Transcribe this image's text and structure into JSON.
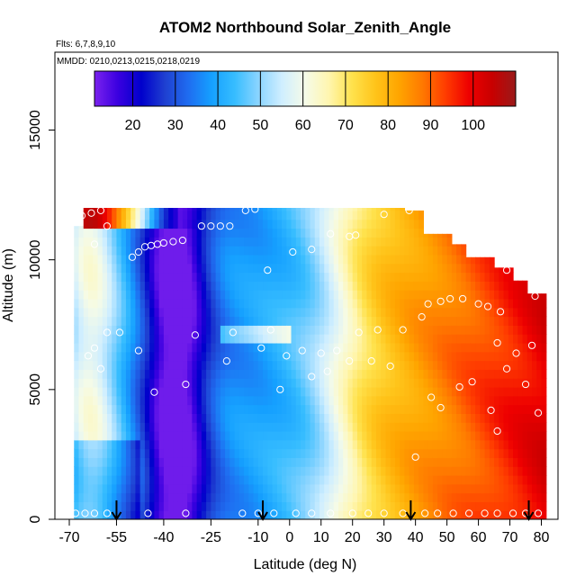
{
  "chart_data": {
    "type": "heatmap",
    "title": "ATOM2 Northbound Solar_Zenith_Angle",
    "flights_text": "Flts: 6,7,8,9,10",
    "dates_text": "MMDD: 0210,0213,0215,0218,0219",
    "xlabel": "Latitude (deg N)",
    "ylabel": "Altitude (m)",
    "xlim": [
      -70,
      85
    ],
    "ylim": [
      0,
      18000
    ],
    "x_ticks": [
      -70,
      -55,
      -40,
      -25,
      -10,
      0,
      10,
      20,
      30,
      40,
      50,
      60,
      70,
      80
    ],
    "x_tick_labels": [
      "-70",
      "-55",
      "-40",
      "-25",
      "-10",
      "0",
      "10",
      "20",
      "30",
      "40",
      "50",
      "60",
      "70",
      "80"
    ],
    "y_ticks": [
      0,
      5000,
      10000,
      15000
    ],
    "y_tick_labels": [
      "0",
      "5000",
      "10000",
      "15000"
    ],
    "colorbar": {
      "range": [
        11,
        110
      ],
      "ticks": [
        20,
        30,
        40,
        50,
        60,
        70,
        80,
        90,
        100
      ],
      "tick_labels": [
        "20",
        "30",
        "40",
        "50",
        "60",
        "70",
        "80",
        "90",
        "100"
      ],
      "colors": [
        "#7b22ee",
        "#3a00e0",
        "#0000cc",
        "#1f3fd0",
        "#1f6cf0",
        "#15a0ff",
        "#37bdff",
        "#8ad4ff",
        "#cfeeff",
        "#f5fbe8",
        "#fff6b0",
        "#ffe24d",
        "#ffc41a",
        "#ffa500",
        "#ff7a00",
        "#ff3c00",
        "#ee0000",
        "#c80000",
        "#9a1a1a"
      ]
    },
    "profile_latitudes": [
      -55,
      -8.5,
      38.5,
      76
    ],
    "surface_points_lat": [
      -68,
      -65,
      -62,
      -58,
      -45,
      -33,
      -15,
      -10,
      -5,
      2,
      7,
      13,
      20,
      25,
      30,
      36,
      43,
      47,
      52,
      57,
      62,
      66,
      71,
      75,
      79
    ],
    "aircraft_samples": [
      {
        "lat": -66,
        "alt": 11700
      },
      {
        "lat": -63,
        "alt": 11800
      },
      {
        "lat": -60,
        "alt": 11900
      },
      {
        "lat": -58,
        "alt": 11300
      },
      {
        "lat": -62,
        "alt": 10600
      },
      {
        "lat": -50,
        "alt": 10100
      },
      {
        "lat": -48,
        "alt": 10300
      },
      {
        "lat": -46,
        "alt": 10500
      },
      {
        "lat": -44,
        "alt": 10550
      },
      {
        "lat": -42,
        "alt": 10600
      },
      {
        "lat": -40,
        "alt": 10650
      },
      {
        "lat": -37,
        "alt": 10700
      },
      {
        "lat": -34,
        "alt": 10750
      },
      {
        "lat": -28,
        "alt": 11300
      },
      {
        "lat": -25,
        "alt": 11300
      },
      {
        "lat": -22,
        "alt": 11300
      },
      {
        "lat": -19,
        "alt": 11300
      },
      {
        "lat": -14,
        "alt": 11900
      },
      {
        "lat": -11,
        "alt": 11950
      },
      {
        "lat": -7,
        "alt": 9600
      },
      {
        "lat": 1,
        "alt": 10300
      },
      {
        "lat": 7,
        "alt": 10400
      },
      {
        "lat": 13,
        "alt": 11000
      },
      {
        "lat": 19,
        "alt": 10900
      },
      {
        "lat": 21,
        "alt": 10950
      },
      {
        "lat": 30,
        "alt": 11750
      },
      {
        "lat": 38,
        "alt": 11900
      },
      {
        "lat": -64,
        "alt": 6300
      },
      {
        "lat": -62,
        "alt": 6600
      },
      {
        "lat": -60,
        "alt": 5800
      },
      {
        "lat": -58,
        "alt": 7200
      },
      {
        "lat": -54,
        "alt": 7200
      },
      {
        "lat": -48,
        "alt": 6500
      },
      {
        "lat": -43,
        "alt": 4900
      },
      {
        "lat": -33,
        "alt": 5200
      },
      {
        "lat": -30,
        "alt": 7100
      },
      {
        "lat": -20,
        "alt": 6100
      },
      {
        "lat": -18,
        "alt": 7200
      },
      {
        "lat": -9,
        "alt": 6600
      },
      {
        "lat": -6,
        "alt": 7300
      },
      {
        "lat": -3,
        "alt": 5000
      },
      {
        "lat": -1,
        "alt": 6300
      },
      {
        "lat": 4,
        "alt": 6500
      },
      {
        "lat": 7,
        "alt": 5500
      },
      {
        "lat": 10,
        "alt": 6400
      },
      {
        "lat": 12,
        "alt": 5700
      },
      {
        "lat": 15,
        "alt": 6500
      },
      {
        "lat": 19,
        "alt": 6100
      },
      {
        "lat": 22,
        "alt": 7200
      },
      {
        "lat": 26,
        "alt": 6100
      },
      {
        "lat": 28,
        "alt": 7300
      },
      {
        "lat": 32,
        "alt": 5900
      },
      {
        "lat": 36,
        "alt": 7300
      },
      {
        "lat": 42,
        "alt": 7800
      },
      {
        "lat": 44,
        "alt": 8300
      },
      {
        "lat": 48,
        "alt": 8400
      },
      {
        "lat": 51,
        "alt": 8500
      },
      {
        "lat": 55,
        "alt": 8500
      },
      {
        "lat": 60,
        "alt": 8300
      },
      {
        "lat": 63,
        "alt": 8200
      },
      {
        "lat": 67,
        "alt": 8000
      },
      {
        "lat": 69,
        "alt": 9600
      },
      {
        "lat": 73,
        "alt": 9700
      },
      {
        "lat": 78,
        "alt": 8600
      },
      {
        "lat": 45,
        "alt": 4700
      },
      {
        "lat": 48,
        "alt": 4300
      },
      {
        "lat": 54,
        "alt": 5100
      },
      {
        "lat": 58,
        "alt": 5300
      },
      {
        "lat": 64,
        "alt": 4200
      },
      {
        "lat": 66,
        "alt": 6800
      },
      {
        "lat": 69,
        "alt": 5800
      },
      {
        "lat": 72,
        "alt": 6400
      },
      {
        "lat": 75,
        "alt": 5200
      },
      {
        "lat": 77,
        "alt": 6700
      },
      {
        "lat": 79,
        "alt": 4100
      },
      {
        "lat": 66,
        "alt": 3400
      },
      {
        "lat": 40,
        "alt": 2400
      }
    ]
  }
}
